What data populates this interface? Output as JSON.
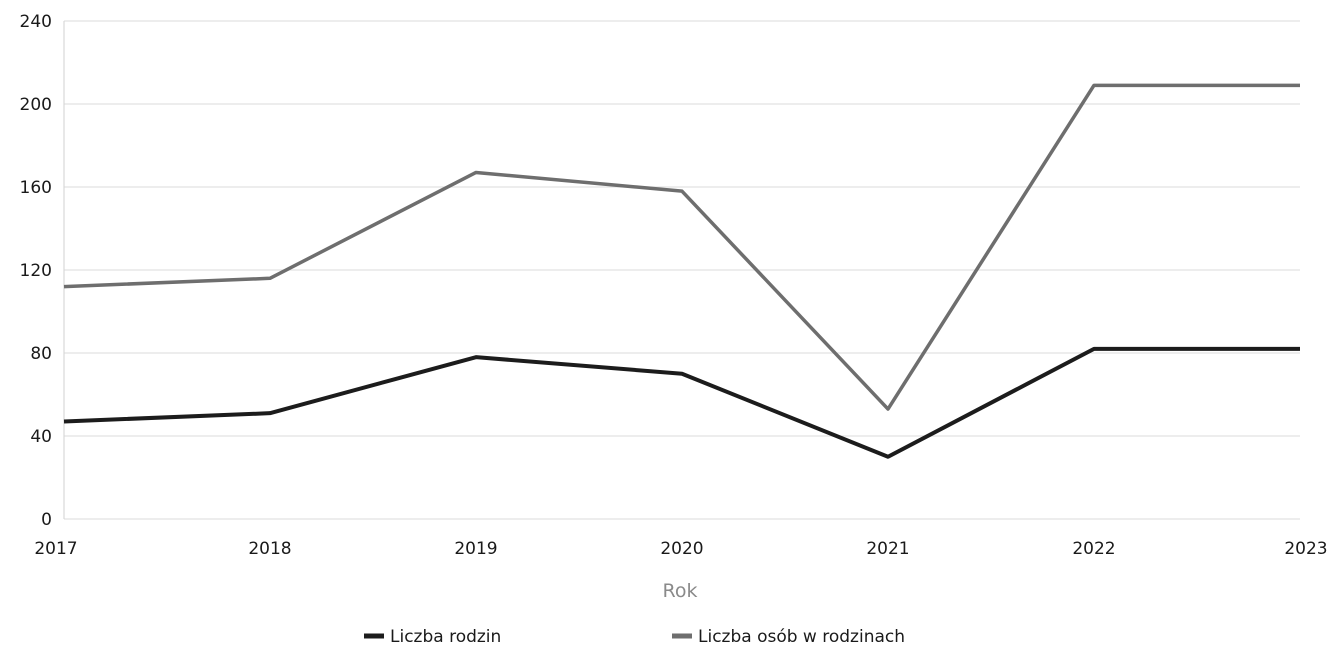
{
  "chart_data": {
    "type": "line",
    "title": "",
    "xlabel": "Rok",
    "ylabel": "",
    "categories": [
      "2017",
      "2018",
      "2019",
      "2020",
      "2021",
      "2022",
      "2023"
    ],
    "yticks": [
      "0",
      "40",
      "80",
      "120",
      "160",
      "200",
      "240"
    ],
    "ylim": [
      0,
      240
    ],
    "grid": true,
    "legend_position": "bottom",
    "series": [
      {
        "name": "Liczba rodzin",
        "color": "#1c1c1c",
        "values": [
          47,
          51,
          78,
          70,
          30,
          82,
          82
        ]
      },
      {
        "name": "Liczba osób w rodzinach",
        "color": "#6e6e6e",
        "values": [
          112,
          116,
          167,
          158,
          53,
          209,
          209
        ]
      }
    ]
  }
}
